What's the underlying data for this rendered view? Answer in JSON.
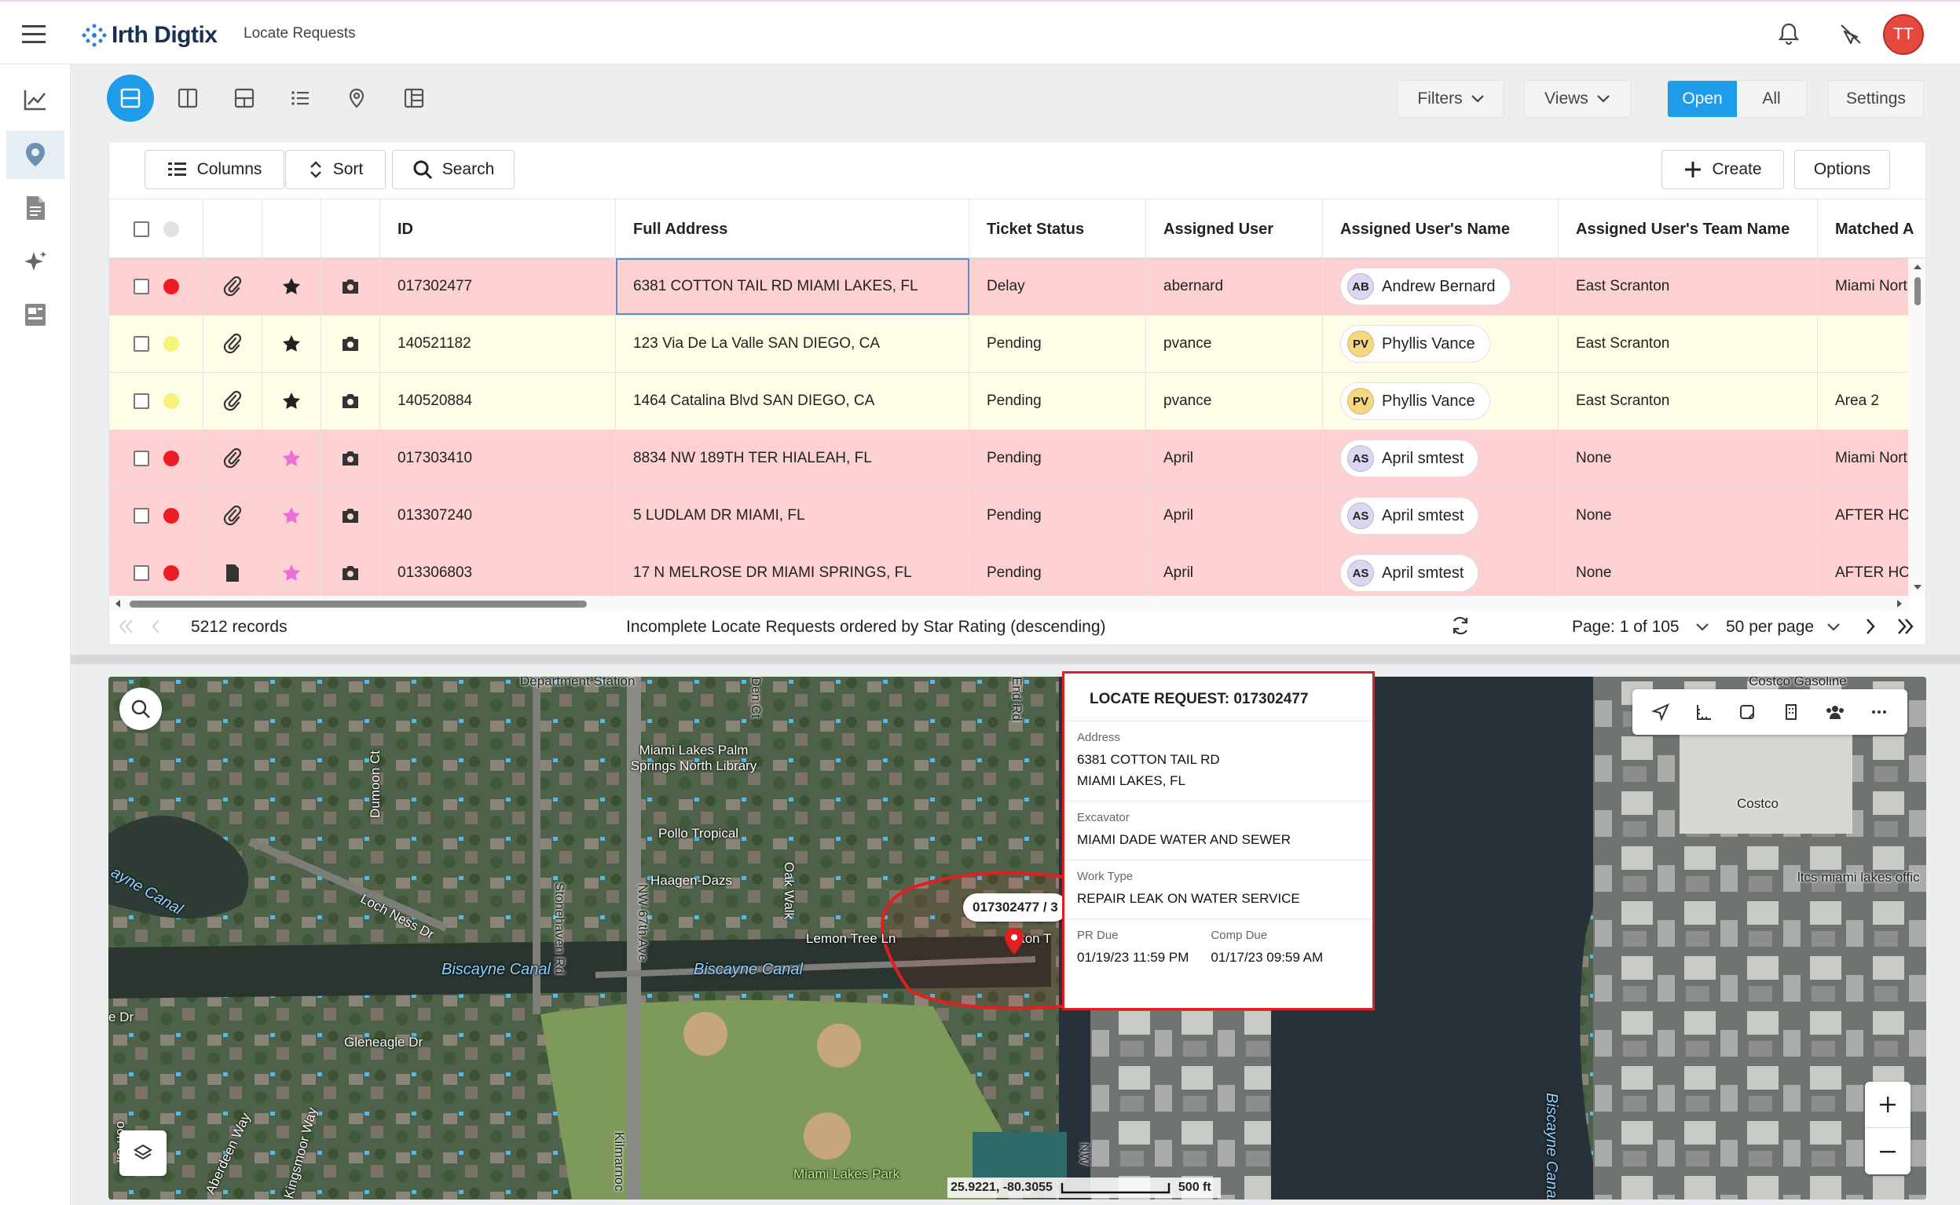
{
  "app": {
    "logo_text": "Irth Digtix",
    "page_title": "Locate Requests",
    "avatar_initials": "TT"
  },
  "toolbar": {
    "filters": "Filters",
    "views": "Views",
    "open": "Open",
    "all": "All",
    "settings": "Settings"
  },
  "grid": {
    "buttons": {
      "columns": "Columns",
      "sort": "Sort",
      "search": "Search",
      "create": "Create",
      "options": "Options"
    },
    "headers": [
      "ID",
      "Full Address",
      "Ticket Status",
      "Assigned User",
      "Assigned User's Name",
      "Assigned User's Team Name",
      "Matched A"
    ],
    "rows": [
      {
        "id": "017302477",
        "address": "6381 COTTON TAIL RD MIAMI LAKES, FL",
        "status": "Delay",
        "user": "abernard",
        "initials": "AB",
        "name": "Andrew Bernard",
        "team": "East Scranton",
        "matched": "Miami North",
        "priority": "red",
        "bg": "#fdd0d2",
        "attach": "clip",
        "star": "black"
      },
      {
        "id": "140521182",
        "address": "123 Via De La Valle SAN DIEGO, CA",
        "status": "Pending",
        "user": "pvance",
        "initials": "PV",
        "name": "Phyllis Vance",
        "team": "East Scranton",
        "matched": "",
        "priority": "yellow",
        "bg": "#fefde6",
        "attach": "clip",
        "star": "black"
      },
      {
        "id": "140520884",
        "address": "1464 Catalina Blvd SAN DIEGO, CA",
        "status": "Pending",
        "user": "pvance",
        "initials": "PV",
        "name": "Phyllis Vance",
        "team": "East Scranton",
        "matched": "Area 2",
        "priority": "yellow",
        "bg": "#fefde6",
        "attach": "clip",
        "star": "black"
      },
      {
        "id": "017303410",
        "address": "8834 NW 189TH TER HIALEAH, FL",
        "status": "Pending",
        "user": "April",
        "initials": "AS",
        "name": "April smtest",
        "team": "None",
        "matched": "Miami North",
        "priority": "red",
        "bg": "#fdd0d2",
        "attach": "clip",
        "star": "pink"
      },
      {
        "id": "013307240",
        "address": "5 LUDLAM DR MIAMI, FL",
        "status": "Pending",
        "user": "April",
        "initials": "AS",
        "name": "April smtest",
        "team": "None",
        "matched": "AFTER HOURS",
        "priority": "red",
        "bg": "#fdd0d2",
        "attach": "clip",
        "star": "pink"
      },
      {
        "id": "013306803",
        "address": "17 N MELROSE DR MIAMI SPRINGS, FL",
        "status": "Pending",
        "user": "April",
        "initials": "AS",
        "name": "April smtest",
        "team": "None",
        "matched": "AFTER HOURS",
        "priority": "red",
        "bg": "#fdd0d2",
        "attach": "doc",
        "star": "pink"
      }
    ],
    "footer": {
      "records": "5212 records",
      "description": "Incomplete Locate Requests ordered by Star Rating (descending)",
      "page": "Page: 1 of 105",
      "per_page": "50 per page"
    }
  },
  "map": {
    "popup": {
      "title": "LOCATE REQUEST: 017302477",
      "address_label": "Address",
      "address_line1": "6381 COTTON TAIL RD",
      "address_line2": "MIAMI LAKES, FL",
      "excavator_label": "Excavator",
      "excavator": "MIAMI DADE WATER AND SEWER",
      "work_type_label": "Work Type",
      "work_type": "REPAIR LEAK ON WATER SERVICE",
      "pr_due_label": "PR Due",
      "pr_due": "01/19/23 11:59 PM",
      "comp_due_label": "Comp Due",
      "comp_due": "01/17/23 09:59 AM"
    },
    "marker_label": "017302477 / 3",
    "coordinates": "25.9221, -80.3055",
    "scale": "500 ft",
    "labels": {
      "department_station": "Department Station",
      "library": "Miami Lakes Palm Springs North Library",
      "pollo": "Pollo Tropical",
      "haagen": "Haagen-Dazs",
      "biscayne1": "Biscayne Canal",
      "biscayne2": "Biscayne Canal",
      "biscayne3": "Biscayne Canal",
      "canal_frag": "anal",
      "canal_left": "ayne Canal",
      "lemon": "Lemon Tree Ln",
      "cotton_frag": "ton T",
      "lochness": "Loch Ness Dr",
      "dumoon": "Dumoon Ct",
      "stonehaven": "Stonehaven Rd",
      "nw67": "NW 67th Ave",
      "oakwalk": "Oak Walk",
      "endrd": "End Rd",
      "denct": "Den Ct",
      "gleneagle": "Gleneagle Dr",
      "park": "Miami Lakes Park",
      "costco": "Costco",
      "costco_gas": "Costco Gasoline",
      "ltcs": "ltcs miami lakes offic",
      "aberdeen": "Aberdeen Way",
      "kingsmoor": "Kingsmoor Way",
      "kilmarnock": "Kilmarnoc",
      "nw": "NW",
      "edr": "e Dr",
      "oonc": "oon Cir"
    }
  }
}
